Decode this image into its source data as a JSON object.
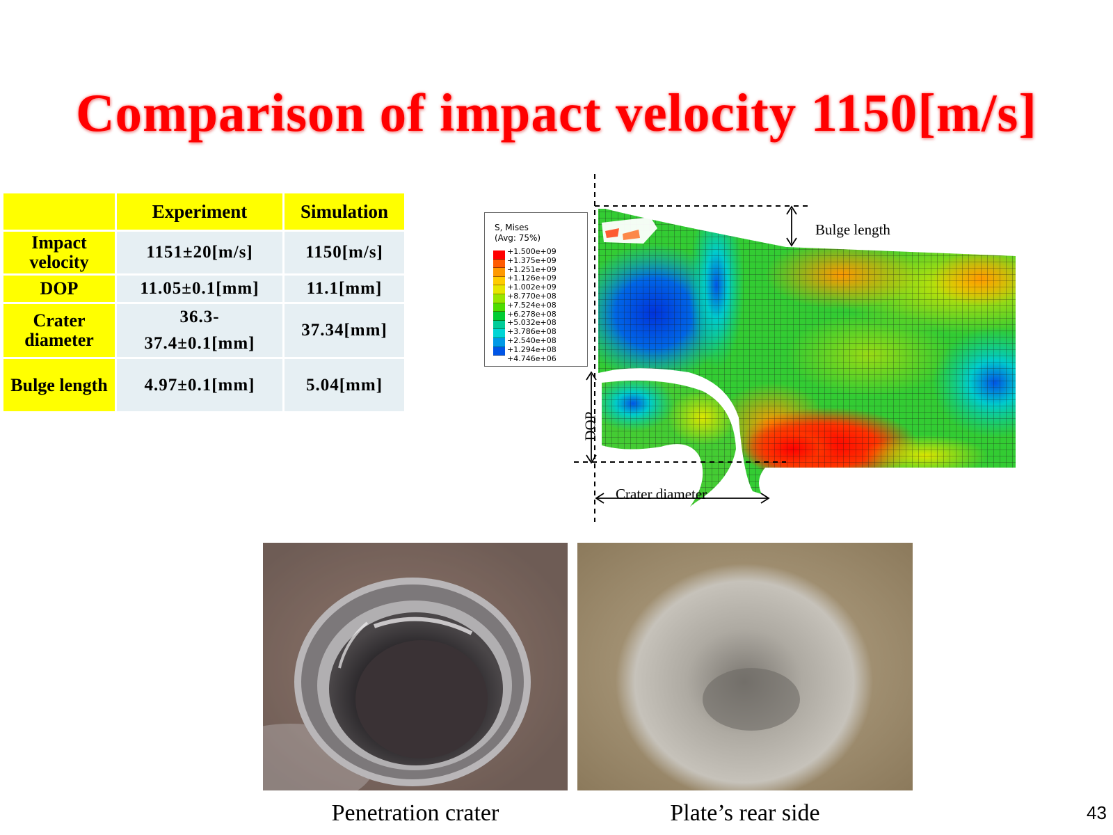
{
  "slide": {
    "title": "Comparison of impact velocity 1150[m/s]",
    "page_number": "43"
  },
  "table": {
    "headers": [
      "",
      "Experiment",
      "Simulation"
    ],
    "rows": [
      {
        "label": "Impact\nvelocity",
        "experiment": "1151±20[m/s]",
        "simulation": "1150[m/s]"
      },
      {
        "label": "DOP",
        "experiment": "11.05±0.1[mm]",
        "simulation": "11.1[mm]"
      },
      {
        "label": "Crater\ndiameter",
        "experiment": "36.3-\n37.4±0.1[mm]",
        "simulation": "37.34[mm]"
      },
      {
        "label": "Bulge length",
        "experiment": "4.97±0.1[mm]",
        "simulation": "5.04[mm]"
      }
    ],
    "colors": {
      "header_bg": "#ffff00",
      "cell_bg": "#e6eff3"
    }
  },
  "simulation_figure": {
    "legend_title": "S, Mises\n(Avg: 75%)",
    "legend_values": [
      "+1.500e+09",
      "+1.375e+09",
      "+1.251e+09",
      "+1.126e+09",
      "+1.002e+09",
      "+8.770e+08",
      "+7.524e+08",
      "+6.278e+08",
      "+5.032e+08",
      "+3.786e+08",
      "+2.540e+08",
      "+1.294e+08",
      "+4.746e+06"
    ],
    "legend_colors": [
      "#ff0000",
      "#ff5a00",
      "#ff9900",
      "#ffcc00",
      "#e6e600",
      "#99e600",
      "#4ddd00",
      "#00cc33",
      "#00cc99",
      "#00d5d5",
      "#0099e6",
      "#0055e6",
      "#0000e6"
    ],
    "annotations": {
      "bulge_length": "Bulge length",
      "dop": "DOP",
      "crater_diameter": "Crater diameter"
    }
  },
  "photos": [
    {
      "caption": "Penetration crater"
    },
    {
      "caption": "Plate’s rear side"
    }
  ]
}
